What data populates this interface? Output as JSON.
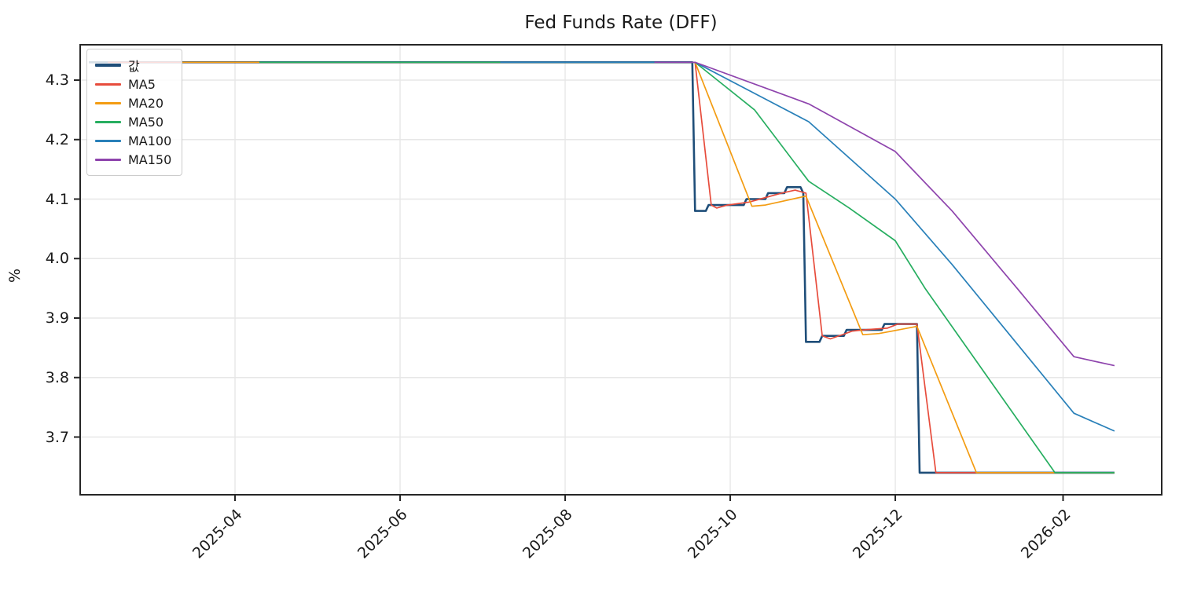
{
  "chart_data": {
    "type": "line",
    "title": "Fed Funds Rate (DFF)",
    "xlabel": "",
    "ylabel": "%",
    "x_tick_labels": [
      "2025-04",
      "2025-06",
      "2025-08",
      "2025-10",
      "2025-12",
      "2026-02"
    ],
    "y_tick_labels": [
      "4.3",
      "4.2",
      "4.1",
      "4.0",
      "3.9",
      "3.8",
      "3.7"
    ],
    "xlim": [
      "2025-02-03",
      "2026-03-09"
    ],
    "ylim": [
      3.6,
      4.36
    ],
    "grid": true,
    "legend_position": "upper left",
    "background_color": "#ffffff",
    "grid_color": "#e7e7e7",
    "axis_color": "#262626",
    "series": [
      {
        "name": "값",
        "color": "#1f4e79",
        "width": 2.6,
        "points": [
          [
            "2025-02-06",
            4.33
          ],
          [
            "2025-09-17",
            4.33
          ],
          [
            "2025-09-18",
            4.08
          ],
          [
            "2025-09-22",
            4.08
          ],
          [
            "2025-09-23",
            4.09
          ],
          [
            "2025-10-06",
            4.09
          ],
          [
            "2025-10-07",
            4.1
          ],
          [
            "2025-10-14",
            4.1
          ],
          [
            "2025-10-15",
            4.11
          ],
          [
            "2025-10-21",
            4.11
          ],
          [
            "2025-10-22",
            4.12
          ],
          [
            "2025-10-27",
            4.12
          ],
          [
            "2025-10-28",
            4.11
          ],
          [
            "2025-10-29",
            3.86
          ],
          [
            "2025-11-03",
            3.86
          ],
          [
            "2025-11-04",
            3.87
          ],
          [
            "2025-11-12",
            3.87
          ],
          [
            "2025-11-13",
            3.88
          ],
          [
            "2025-11-26",
            3.88
          ],
          [
            "2025-11-27",
            3.89
          ],
          [
            "2025-12-09",
            3.89
          ],
          [
            "2025-12-10",
            3.64
          ],
          [
            "2026-02-20",
            3.64
          ]
        ]
      },
      {
        "name": "MA5",
        "color": "#e74c3c",
        "width": 1.7,
        "points": [
          [
            "2025-02-13",
            4.33
          ],
          [
            "2025-09-18",
            4.33
          ],
          [
            "2025-09-24",
            4.09
          ],
          [
            "2025-09-26",
            4.085
          ],
          [
            "2025-09-30",
            4.09
          ],
          [
            "2025-10-08",
            4.095
          ],
          [
            "2025-10-12",
            4.1
          ],
          [
            "2025-10-16",
            4.105
          ],
          [
            "2025-10-20",
            4.11
          ],
          [
            "2025-10-25",
            4.115
          ],
          [
            "2025-10-29",
            4.11
          ],
          [
            "2025-11-04",
            3.87
          ],
          [
            "2025-11-07",
            3.865
          ],
          [
            "2025-11-12",
            3.873
          ],
          [
            "2025-11-15",
            3.878
          ],
          [
            "2025-11-19",
            3.88
          ],
          [
            "2025-11-28",
            3.883
          ],
          [
            "2025-12-02",
            3.89
          ],
          [
            "2025-12-09",
            3.89
          ],
          [
            "2025-12-16",
            3.64
          ],
          [
            "2026-02-20",
            3.64
          ]
        ]
      },
      {
        "name": "MA20",
        "color": "#f39c12",
        "width": 1.7,
        "points": [
          [
            "2025-03-12",
            4.33
          ],
          [
            "2025-09-18",
            4.33
          ],
          [
            "2025-10-09",
            4.088
          ],
          [
            "2025-10-14",
            4.09
          ],
          [
            "2025-10-29",
            4.105
          ],
          [
            "2025-11-19",
            3.872
          ],
          [
            "2025-11-25",
            3.874
          ],
          [
            "2025-12-09",
            3.886
          ],
          [
            "2025-12-31",
            3.64
          ],
          [
            "2026-02-20",
            3.64
          ]
        ]
      },
      {
        "name": "MA50",
        "color": "#27ae60",
        "width": 1.7,
        "points": [
          [
            "2025-04-10",
            4.33
          ],
          [
            "2025-09-18",
            4.33
          ],
          [
            "2025-10-10",
            4.25
          ],
          [
            "2025-10-30",
            4.13
          ],
          [
            "2025-11-14",
            4.085
          ],
          [
            "2025-12-01",
            4.03
          ],
          [
            "2025-12-12",
            3.95
          ],
          [
            "2026-01-29",
            3.64
          ],
          [
            "2026-02-20",
            3.64
          ]
        ]
      },
      {
        "name": "MA100",
        "color": "#2980b9",
        "width": 1.7,
        "points": [
          [
            "2025-07-08",
            4.33
          ],
          [
            "2025-09-18",
            4.33
          ],
          [
            "2025-10-30",
            4.23
          ],
          [
            "2025-12-01",
            4.1
          ],
          [
            "2025-12-22",
            3.99
          ],
          [
            "2026-02-05",
            3.74
          ],
          [
            "2026-02-20",
            3.71
          ]
        ]
      },
      {
        "name": "MA150",
        "color": "#8e44ad",
        "width": 1.7,
        "points": [
          [
            "2025-09-03",
            4.33
          ],
          [
            "2025-09-18",
            4.33
          ],
          [
            "2025-10-30",
            4.26
          ],
          [
            "2025-12-01",
            4.18
          ],
          [
            "2025-12-22",
            4.08
          ],
          [
            "2026-01-15",
            3.95
          ],
          [
            "2026-02-05",
            3.835
          ],
          [
            "2026-02-20",
            3.82
          ]
        ]
      }
    ]
  }
}
